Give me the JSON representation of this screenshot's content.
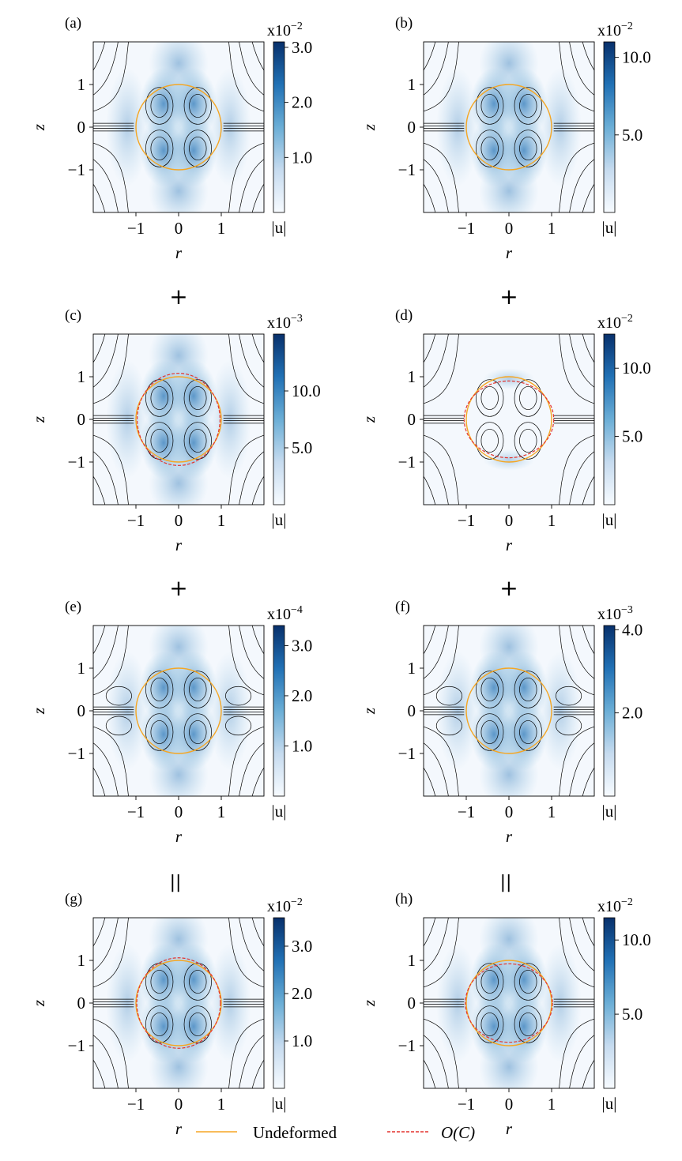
{
  "colors": {
    "undeformed": "#f5a623",
    "perturbed": "#e3342f",
    "streamline": "#000000",
    "cmap_low": "#f7fbff",
    "cmap_high": "#08306b"
  },
  "operators": [
    "+",
    "+",
    "+",
    "+",
    "=",
    "="
  ],
  "legend": {
    "undeformed": "Undeformed",
    "perturbed": "O(C)"
  },
  "chart_data": [
    {
      "panel": "(a)",
      "type": "heatmap",
      "xlabel": "r",
      "ylabel": "z",
      "xticks": [
        "−1",
        "0",
        "1"
      ],
      "yticks": [
        "1",
        "0",
        "−1"
      ],
      "xlim": [
        -2,
        2
      ],
      "ylim": [
        -2,
        2
      ],
      "colorbar": {
        "label": "|u|",
        "exponent": "x10",
        "power": "−2",
        "ticks": [
          {
            "v": 3.0,
            "t": "3.0"
          },
          {
            "v": 2.0,
            "t": "2.0"
          },
          {
            "v": 1.0,
            "t": "1.0"
          }
        ],
        "max": 3.1
      },
      "interface": [
        "undeformed"
      ]
    },
    {
      "panel": "(b)",
      "type": "heatmap",
      "xlabel": "r",
      "ylabel": "z",
      "xticks": [
        "−1",
        "0",
        "1"
      ],
      "yticks": [
        "1",
        "0",
        "−1"
      ],
      "xlim": [
        -2,
        2
      ],
      "ylim": [
        -2,
        2
      ],
      "colorbar": {
        "label": "|u|",
        "exponent": "x10",
        "power": "−2",
        "ticks": [
          {
            "v": 10.0,
            "t": "10.0"
          },
          {
            "v": 5.0,
            "t": "5.0"
          }
        ],
        "max": 11.0
      },
      "interface": [
        "undeformed"
      ]
    },
    {
      "panel": "(c)",
      "type": "heatmap",
      "xlabel": "r",
      "ylabel": "z",
      "xticks": [
        "−1",
        "0",
        "1"
      ],
      "yticks": [
        "1",
        "0",
        "−1"
      ],
      "xlim": [
        -2,
        2
      ],
      "ylim": [
        -2,
        2
      ],
      "colorbar": {
        "label": "|u|",
        "exponent": "x10",
        "power": "−3",
        "ticks": [
          {
            "v": 10.0,
            "t": "10.0"
          },
          {
            "v": 5.0,
            "t": "5.0"
          }
        ],
        "max": 15.0
      },
      "interface": [
        "undeformed",
        "perturbed"
      ]
    },
    {
      "panel": "(d)",
      "type": "heatmap",
      "xlabel": "r",
      "ylabel": "z",
      "xticks": [
        "−1",
        "0",
        "1"
      ],
      "yticks": [
        "1",
        "0",
        "−1"
      ],
      "xlim": [
        -2,
        2
      ],
      "ylim": [
        -2,
        2
      ],
      "colorbar": {
        "label": "|u|",
        "exponent": "x10",
        "power": "−2",
        "ticks": [
          {
            "v": 10.0,
            "t": "10.0"
          },
          {
            "v": 5.0,
            "t": "5.0"
          }
        ],
        "max": 12.5
      },
      "interface": [
        "undeformed",
        "perturbed"
      ]
    },
    {
      "panel": "(e)",
      "type": "heatmap",
      "xlabel": "r",
      "ylabel": "z",
      "xticks": [
        "−1",
        "0",
        "1"
      ],
      "yticks": [
        "1",
        "0",
        "−1"
      ],
      "xlim": [
        -2,
        2
      ],
      "ylim": [
        -2,
        2
      ],
      "colorbar": {
        "label": "|u|",
        "exponent": "x10",
        "power": "−4",
        "ticks": [
          {
            "v": 3.0,
            "t": "3.0"
          },
          {
            "v": 2.0,
            "t": "2.0"
          },
          {
            "v": 1.0,
            "t": "1.0"
          }
        ],
        "max": 3.4
      },
      "interface": [
        "undeformed"
      ]
    },
    {
      "panel": "(f)",
      "type": "heatmap",
      "xlabel": "r",
      "ylabel": "z",
      "xticks": [
        "−1",
        "0",
        "1"
      ],
      "yticks": [
        "1",
        "0",
        "−1"
      ],
      "xlim": [
        -2,
        2
      ],
      "ylim": [
        -2,
        2
      ],
      "colorbar": {
        "label": "|u|",
        "exponent": "x10",
        "power": "−3",
        "ticks": [
          {
            "v": 4.0,
            "t": "4.0"
          },
          {
            "v": 2.0,
            "t": "2.0"
          }
        ],
        "max": 4.1
      },
      "interface": [
        "undeformed"
      ]
    },
    {
      "panel": "(g)",
      "type": "heatmap",
      "xlabel": "r",
      "ylabel": "z",
      "xticks": [
        "−1",
        "0",
        "1"
      ],
      "yticks": [
        "1",
        "0",
        "−1"
      ],
      "xlim": [
        -2,
        2
      ],
      "ylim": [
        -2,
        2
      ],
      "colorbar": {
        "label": "|u|",
        "exponent": "x10",
        "power": "−2",
        "ticks": [
          {
            "v": 3.0,
            "t": "3.0"
          },
          {
            "v": 2.0,
            "t": "2.0"
          },
          {
            "v": 1.0,
            "t": "1.0"
          }
        ],
        "max": 3.6
      },
      "interface": [
        "undeformed",
        "perturbed"
      ]
    },
    {
      "panel": "(h)",
      "type": "heatmap",
      "xlabel": "r",
      "ylabel": "z",
      "xticks": [
        "−1",
        "0",
        "1"
      ],
      "yticks": [
        "1",
        "0",
        "−1"
      ],
      "xlim": [
        -2,
        2
      ],
      "ylim": [
        -2,
        2
      ],
      "colorbar": {
        "label": "|u|",
        "exponent": "x10",
        "power": "−2",
        "ticks": [
          {
            "v": 10.0,
            "t": "10.0"
          },
          {
            "v": 5.0,
            "t": "5.0"
          }
        ],
        "max": 11.5
      },
      "interface": [
        "undeformed",
        "perturbed"
      ]
    }
  ]
}
